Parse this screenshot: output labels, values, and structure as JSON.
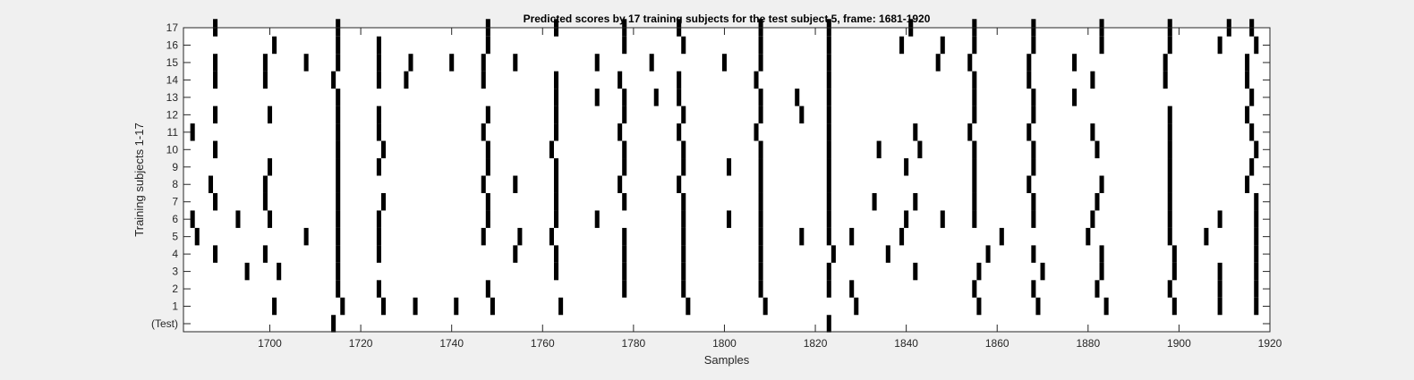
{
  "chart_data": {
    "type": "raster",
    "title": "Predicted scores by 17 training subjects for the test subject 5, frame: 1681-1920",
    "xlabel": "Samples",
    "ylabel": "Training subjects 1-17",
    "xlim": [
      1681,
      1920
    ],
    "x_ticks": [
      1700,
      1720,
      1740,
      1760,
      1780,
      1800,
      1820,
      1840,
      1860,
      1880,
      1900,
      1920
    ],
    "y_ticks": [
      "(Test)",
      "1",
      "2",
      "3",
      "4",
      "5",
      "6",
      "7",
      "8",
      "9",
      "10",
      "11",
      "12",
      "13",
      "14",
      "15",
      "16",
      "17"
    ],
    "grid": false,
    "colors": {
      "background": "#f0f0f0",
      "plot_area": "#ffffff",
      "mark": "#000000",
      "text": "#262626"
    },
    "rows": [
      {
        "label": "(Test)",
        "x": [
          1714,
          1823
        ]
      },
      {
        "label": "1",
        "x": [
          1701,
          1716,
          1725,
          1732,
          1741,
          1749,
          1764,
          1792,
          1809,
          1829,
          1856,
          1869,
          1884,
          1899,
          1909,
          1917
        ]
      },
      {
        "label": "2",
        "x": [
          1715,
          1724,
          1748,
          1778,
          1791,
          1808,
          1823,
          1828,
          1855,
          1868,
          1882,
          1898,
          1909,
          1917
        ]
      },
      {
        "label": "3",
        "x": [
          1695,
          1702,
          1715,
          1763,
          1778,
          1791,
          1808,
          1823,
          1842,
          1856,
          1870,
          1883,
          1899,
          1909,
          1917
        ]
      },
      {
        "label": "4",
        "x": [
          1688,
          1699,
          1715,
          1724,
          1754,
          1763,
          1778,
          1791,
          1808,
          1824,
          1836,
          1858,
          1868,
          1883,
          1899,
          1917
        ]
      },
      {
        "label": "5",
        "x": [
          1684,
          1708,
          1715,
          1724,
          1747,
          1755,
          1762,
          1778,
          1791,
          1808,
          1817,
          1823,
          1828,
          1839,
          1861,
          1880,
          1898,
          1906,
          1917
        ]
      },
      {
        "label": "6",
        "x": [
          1683,
          1693,
          1700,
          1715,
          1724,
          1748,
          1763,
          1772,
          1791,
          1801,
          1808,
          1823,
          1840,
          1848,
          1855,
          1868,
          1881,
          1898,
          1909,
          1917
        ]
      },
      {
        "label": "7",
        "x": [
          1688,
          1699,
          1715,
          1725,
          1748,
          1763,
          1778,
          1791,
          1808,
          1823,
          1833,
          1842,
          1855,
          1868,
          1882,
          1898,
          1917
        ]
      },
      {
        "label": "8",
        "x": [
          1687,
          1699,
          1715,
          1747,
          1754,
          1763,
          1777,
          1790,
          1808,
          1823,
          1855,
          1867,
          1883,
          1898,
          1915
        ]
      },
      {
        "label": "9",
        "x": [
          1700,
          1715,
          1724,
          1748,
          1763,
          1778,
          1791,
          1801,
          1808,
          1823,
          1840,
          1855,
          1868,
          1898,
          1916
        ]
      },
      {
        "label": "10",
        "x": [
          1688,
          1715,
          1725,
          1748,
          1762,
          1778,
          1791,
          1808,
          1823,
          1834,
          1843,
          1855,
          1868,
          1882,
          1898,
          1917
        ]
      },
      {
        "label": "11",
        "x": [
          1683,
          1715,
          1724,
          1747,
          1763,
          1777,
          1790,
          1807,
          1823,
          1842,
          1854,
          1867,
          1881,
          1898,
          1916
        ]
      },
      {
        "label": "12",
        "x": [
          1688,
          1700,
          1715,
          1724,
          1748,
          1763,
          1778,
          1791,
          1808,
          1817,
          1823,
          1855,
          1868,
          1898,
          1915
        ]
      },
      {
        "label": "13",
        "x": [
          1715,
          1763,
          1772,
          1778,
          1785,
          1790,
          1808,
          1816,
          1823,
          1855,
          1868,
          1877,
          1916
        ]
      },
      {
        "label": "14",
        "x": [
          1688,
          1699,
          1714,
          1724,
          1730,
          1747,
          1763,
          1777,
          1790,
          1807,
          1823,
          1855,
          1867,
          1881,
          1897,
          1915
        ]
      },
      {
        "label": "15",
        "x": [
          1688,
          1699,
          1708,
          1715,
          1724,
          1731,
          1740,
          1747,
          1754,
          1772,
          1784,
          1800,
          1808,
          1823,
          1847,
          1854,
          1867,
          1877,
          1897,
          1915
        ]
      },
      {
        "label": "16",
        "x": [
          1701,
          1715,
          1724,
          1748,
          1778,
          1791,
          1808,
          1823,
          1839,
          1848,
          1855,
          1868,
          1883,
          1898,
          1909,
          1917
        ]
      },
      {
        "label": "17",
        "x": [
          1688,
          1715,
          1748,
          1763,
          1778,
          1790,
          1808,
          1823,
          1841,
          1855,
          1868,
          1883,
          1898,
          1911,
          1916
        ]
      }
    ]
  }
}
